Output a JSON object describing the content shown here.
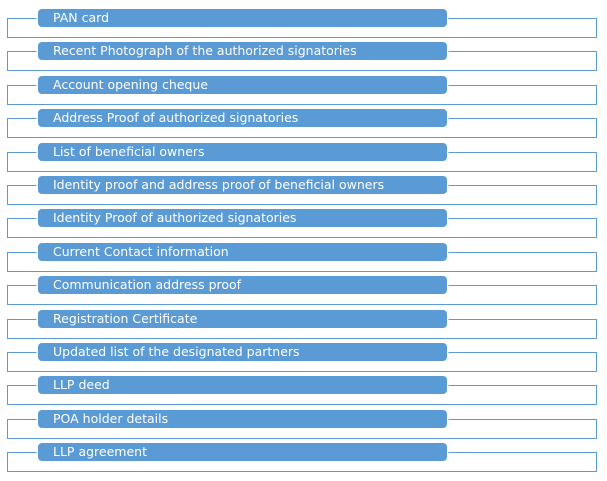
{
  "colors": {
    "bar_fill": "#5b9bd5",
    "outline": "#5b9bd5",
    "label_text": "#ffffff",
    "background": "#ffffff"
  },
  "items": [
    {
      "label": "PAN card"
    },
    {
      "label": "Recent Photograph of the authorized signatories"
    },
    {
      "label": "Account opening cheque"
    },
    {
      "label": "Address Proof of authorized signatories"
    },
    {
      "label": "List of beneficial owners"
    },
    {
      "label": "Identity proof and address proof of beneficial owners"
    },
    {
      "label": "Identity Proof of authorized signatories"
    },
    {
      "label": "Current Contact information"
    },
    {
      "label": "Communication address proof"
    },
    {
      "label": "Registration Certificate"
    },
    {
      "label": "Updated list of the designated partners"
    },
    {
      "label": "LLP deed"
    },
    {
      "label": "POA holder details"
    },
    {
      "label": "LLP agreement"
    }
  ]
}
